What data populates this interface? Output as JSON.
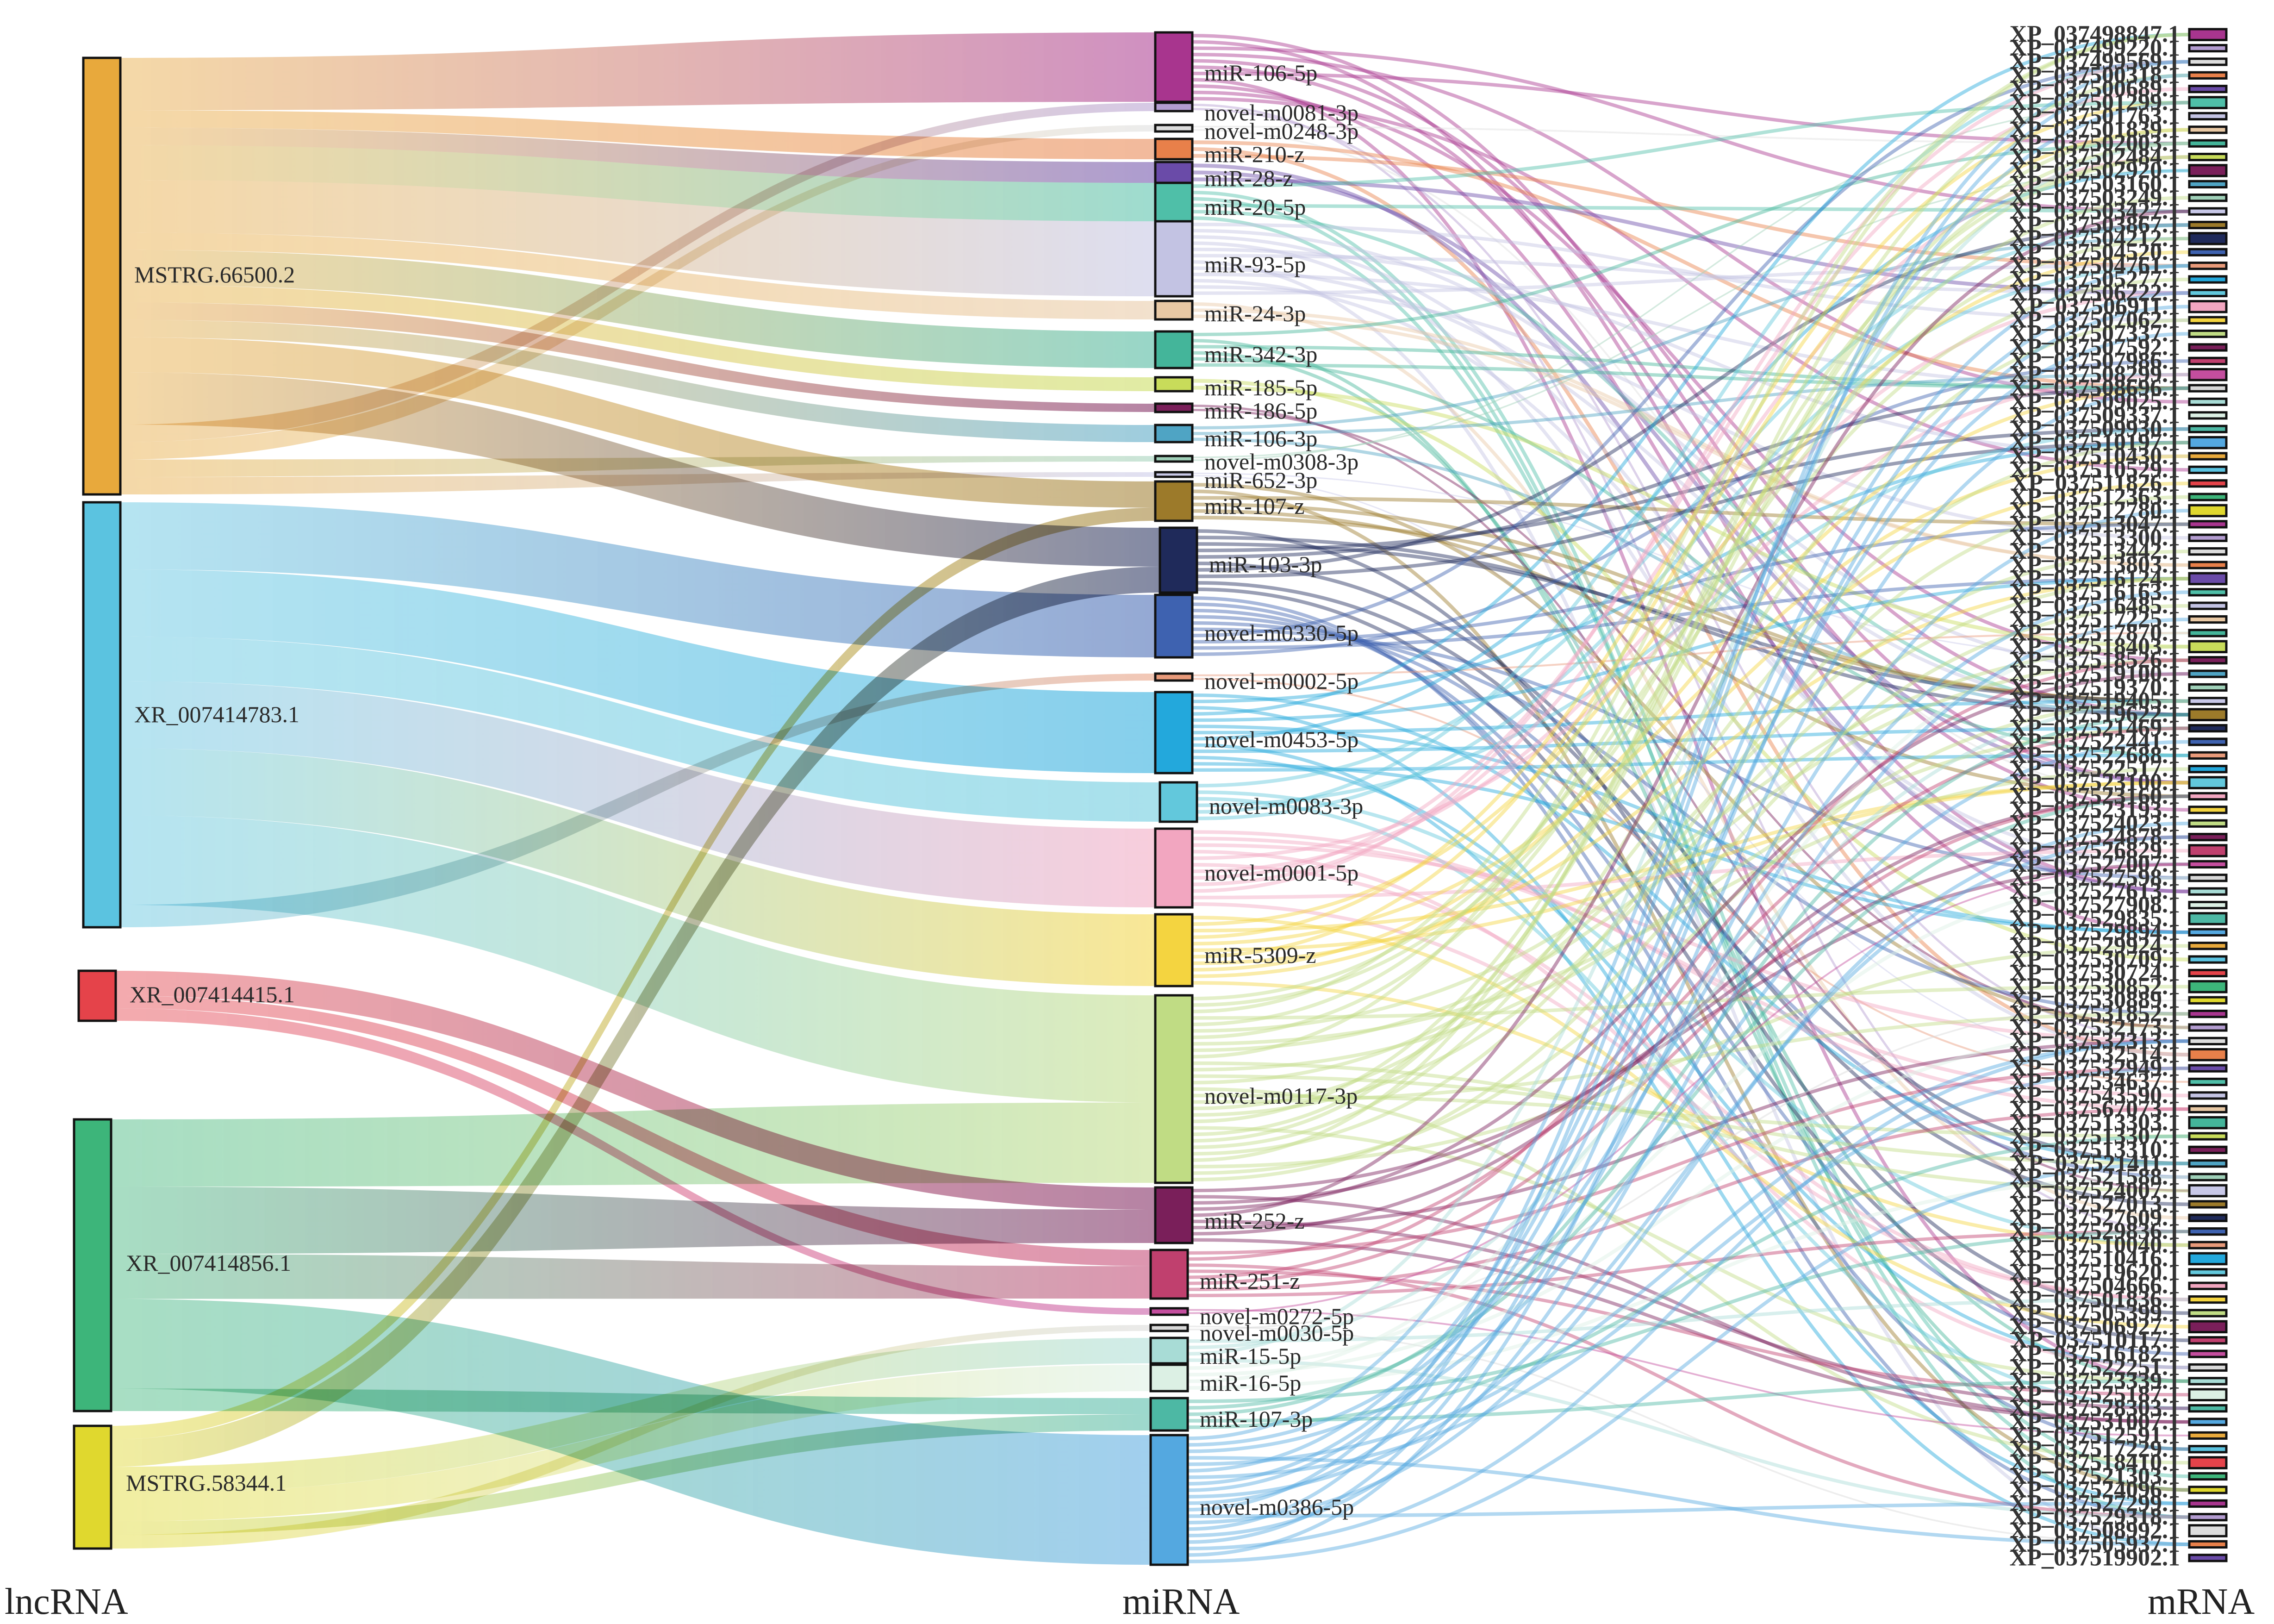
{
  "columns": [
    "lncRNA",
    "miRNA",
    "mRNA"
  ],
  "lncRNA": [
    {
      "name": "MSTRG.66500.2",
      "color": "#E8A93C"
    },
    {
      "name": "XR_007414783.1",
      "color": "#5BC3E0"
    },
    {
      "name": "XR_007414415.1",
      "color": "#E5434A"
    },
    {
      "name": "XR_007414856.1",
      "color": "#3DB57A"
    },
    {
      "name": "MSTRG.58344.1",
      "color": "#E0D82E"
    }
  ],
  "miRNA": [
    {
      "name": "miR-106-5p",
      "color": "#A8358E"
    },
    {
      "name": "novel-m0081-3p",
      "color": "#B39CD0"
    },
    {
      "name": "novel-m0248-3p",
      "color": "#DDDDDD"
    },
    {
      "name": "miR-210-z",
      "color": "#E8804A"
    },
    {
      "name": "miR-28-z",
      "color": "#6A4BA8"
    },
    {
      "name": "miR-20-5p",
      "color": "#4FBFA8"
    },
    {
      "name": "miR-93-5p",
      "color": "#C3C3E3"
    },
    {
      "name": "miR-24-3p",
      "color": "#E8C8A4"
    },
    {
      "name": "miR-342-3p",
      "color": "#44B59A"
    },
    {
      "name": "miR-185-5p",
      "color": "#C8DC5A"
    },
    {
      "name": "miR-186-5p",
      "color": "#7A1F5A"
    },
    {
      "name": "miR-106-3p",
      "color": "#4FA4C4"
    },
    {
      "name": "novel-m0308-3p",
      "color": "#9FD0B8"
    },
    {
      "name": "miR-652-3p",
      "color": "#C8C8E8"
    },
    {
      "name": "miR-107-z",
      "color": "#9C7A2A"
    },
    {
      "name": "miR-103-3p",
      "color": "#1F2A5A"
    },
    {
      "name": "novel-m0330-5p",
      "color": "#3E62B0"
    },
    {
      "name": "novel-m0002-5p",
      "color": "#E89A7A"
    },
    {
      "name": "novel-m0453-5p",
      "color": "#23A8DC"
    },
    {
      "name": "novel-m0083-3p",
      "color": "#62C8DC"
    },
    {
      "name": "novel-m0001-5p",
      "color": "#F2A6C0"
    },
    {
      "name": "miR-5309-z",
      "color": "#F4D440"
    },
    {
      "name": "novel-m0117-3p",
      "color": "#C0DC84"
    },
    {
      "name": "miR-252-z",
      "color": "#7A1F5A"
    },
    {
      "name": "miR-251-z",
      "color": "#C0406E"
    },
    {
      "name": "novel-m0272-5p",
      "color": "#C44E9E"
    },
    {
      "name": "novel-m0030-5p",
      "color": "#D8D8D8"
    },
    {
      "name": "miR-15-5p",
      "color": "#A8DCD6"
    },
    {
      "name": "miR-16-5p",
      "color": "#DCF0E4"
    },
    {
      "name": "miR-107-3p",
      "color": "#4DB8A4"
    },
    {
      "name": "novel-m0386-5p",
      "color": "#54A8E0"
    }
  ],
  "mRNA_labels": [
    "XP_037498847.1",
    "XP_037499220.1",
    "XP_037499569.1",
    "XP_037500318.1",
    "XP_037500689.1",
    "XP_037501299.1",
    "XP_037501763.1",
    "XP_037501839.1",
    "XP_037502003.1",
    "XP_037502484.1",
    "XP_037502920.1",
    "XP_037503160.1",
    "XP_037503249.1",
    "XP_037503427.1",
    "XP_037503867.1",
    "XP_037504212.1",
    "XP_037504520.1",
    "XP_037504761.1",
    "XP_037505277.1",
    "XP_037506222.1",
    "XP_037506911.1",
    "XP_037507062.1",
    "XP_037507337.1",
    "XP_037507592.1",
    "XP_037507986.1",
    "XP_037508299.1",
    "XP_037508696.1",
    "XP_037509025.1",
    "XP_037509337.1",
    "XP_037509930.1",
    "XP_037510197.1",
    "XP_037510430.1",
    "XP_037510529.1",
    "XP_037511826.1",
    "XP_037512363.1",
    "XP_037512780.1",
    "XP_037513047.1",
    "XP_037513300.1",
    "XP_037513442.1",
    "XP_037513803.1",
    "XP_037516124.1",
    "XP_037516163.1",
    "XP_037516485.1",
    "XP_037517225.1",
    "XP_037517870.1",
    "XP_037518403.1",
    "XP_037518526.1",
    "XP_037519100.1",
    "XP_037519370.1",
    "XP_037519405.1",
    "XP_037519622.1",
    "XP_037521469.1",
    "XP_037522441.1",
    "XP_037522688.1",
    "XP_037522517.1",
    "XP_037523100.1",
    "XP_037523160.1",
    "XP_037523193.1",
    "XP_037524023.1",
    "XP_037524878.1",
    "XP_037526829.1",
    "XP_037527007.1",
    "XP_037527598.1",
    "XP_037527613.1",
    "XP_037527908.1",
    "XP_037529835.1",
    "XP_037529894.1",
    "XP_037529924.1",
    "XP_037530709.1",
    "XP_037530724.1",
    "XP_037530852.1",
    "XP_037530889.1",
    "XP_037531852.1",
    "XP_037532173.1",
    "XP_037532313.1",
    "XP_037532514.1",
    "XP_037532949.1",
    "XP_037534637.1",
    "XP_037543590.1",
    "XP_037567073.1",
    "XP_037513303.1",
    "XP_037513307.1",
    "XP_037513310.1",
    "XP_037521411.1",
    "XP_037521588.1",
    "XP_037524007.1",
    "XP_037527013.1",
    "XP_037527609.1",
    "XP_037529836.1",
    "XP_037510040.1",
    "XP_037510416.1",
    "XP_037519620.1",
    "XP_037504666.1",
    "XP_037501836.1",
    "XP_037505399.1",
    "XP_037506927.1",
    "XP_037510117.1",
    "XP_037516182.1",
    "XP_037522251.1",
    "XP_037523339.1",
    "XP_037525187.1",
    "XP_037528303.1",
    "XP_037531007.1",
    "XP_037512591.1",
    "XP_037517229.1",
    "XP_037518410.1",
    "XP_037521303.1",
    "XP_037524096.1",
    "XP_037527299.1",
    "XP_037529318.1",
    "XP_037508992.1",
    "XP_037505937.1",
    "XP_037519902.1"
  ],
  "colors": {
    "node_stroke": "#111111"
  }
}
